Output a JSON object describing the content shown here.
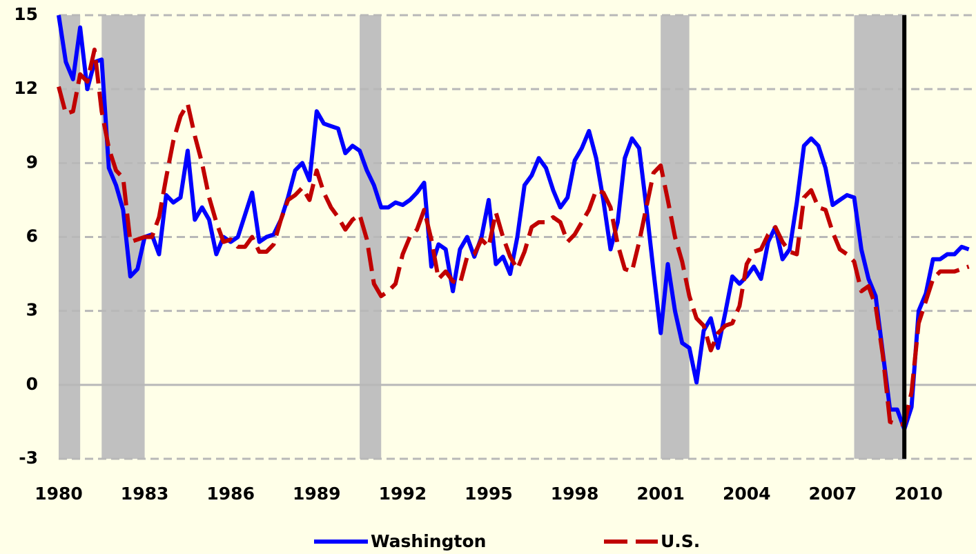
{
  "chart_data": {
    "type": "line",
    "x": [
      1980,
      1980.25,
      1980.5,
      1980.75,
      1981,
      1981.25,
      1981.5,
      1981.75,
      1982,
      1982.25,
      1982.5,
      1982.75,
      1983,
      1983.25,
      1983.5,
      1983.75,
      1984,
      1984.25,
      1984.5,
      1984.75,
      1985,
      1985.25,
      1985.5,
      1985.75,
      1986,
      1986.25,
      1986.5,
      1986.75,
      1987,
      1987.25,
      1987.5,
      1987.75,
      1988,
      1988.25,
      1988.5,
      1988.75,
      1989,
      1989.25,
      1989.5,
      1989.75,
      1990,
      1990.25,
      1990.5,
      1990.75,
      1991,
      1991.25,
      1991.5,
      1991.75,
      1992,
      1992.25,
      1992.5,
      1992.75,
      1993,
      1993.25,
      1993.5,
      1993.75,
      1994,
      1994.25,
      1994.5,
      1994.75,
      1995,
      1995.25,
      1995.5,
      1995.75,
      1996,
      1996.25,
      1996.5,
      1996.75,
      1997,
      1997.25,
      1997.5,
      1997.75,
      1998,
      1998.25,
      1998.5,
      1998.75,
      1999,
      1999.25,
      1999.5,
      1999.75,
      2000,
      2000.25,
      2000.5,
      2000.75,
      2001,
      2001.25,
      2001.5,
      2001.75,
      2002,
      2002.25,
      2002.5,
      2002.75,
      2003,
      2003.25,
      2003.5,
      2003.75,
      2004,
      2004.25,
      2004.5,
      2004.75,
      2005,
      2005.25,
      2005.5,
      2005.75,
      2006,
      2006.25,
      2006.5,
      2006.75,
      2007,
      2007.25,
      2007.5,
      2007.75,
      2008,
      2008.25,
      2008.5,
      2008.75,
      2009,
      2009.25,
      2009.5,
      2009.75,
      2010,
      2010.25,
      2010.5,
      2010.75,
      2011,
      2011.25,
      2011.5,
      2011.75
    ],
    "series": [
      {
        "name": "Washington",
        "color": "#0000ff",
        "dashed": false,
        "values": [
          15.0,
          13.1,
          12.4,
          14.5,
          12.0,
          13.1,
          13.2,
          8.8,
          8.1,
          7.1,
          4.4,
          4.7,
          6.0,
          6.1,
          5.3,
          7.7,
          7.4,
          7.6,
          9.5,
          6.7,
          7.2,
          6.7,
          5.3,
          6.0,
          5.8,
          6.0,
          6.9,
          7.8,
          5.8,
          6.0,
          6.1,
          6.7,
          7.6,
          8.7,
          9.0,
          8.3,
          11.1,
          10.6,
          10.5,
          10.4,
          9.4,
          9.7,
          9.5,
          8.7,
          8.1,
          7.2,
          7.2,
          7.4,
          7.3,
          7.5,
          7.8,
          8.2,
          4.8,
          5.7,
          5.5,
          3.8,
          5.5,
          6.0,
          5.2,
          6.0,
          7.5,
          4.9,
          5.2,
          4.5,
          6.0,
          8.1,
          8.5,
          9.2,
          8.8,
          7.9,
          7.2,
          7.6,
          9.1,
          9.6,
          10.3,
          9.2,
          7.5,
          5.5,
          6.6,
          9.2,
          10.0,
          9.6,
          7.2,
          4.6,
          2.1,
          4.9,
          3.0,
          1.7,
          1.5,
          0.1,
          2.2,
          2.7,
          1.5,
          2.9,
          4.4,
          4.1,
          4.4,
          4.8,
          4.3,
          5.8,
          6.4,
          5.1,
          5.5,
          7.4,
          9.7,
          10.0,
          9.7,
          8.8,
          7.3,
          7.5,
          7.7,
          7.6,
          5.5,
          4.3,
          3.6,
          1.3,
          -1.0,
          -1.0,
          -1.8,
          -0.9,
          3.0,
          3.7,
          5.1,
          5.1,
          5.3,
          5.3,
          5.6,
          5.5
        ]
      },
      {
        "name": "U.S.",
        "color": "#c00000",
        "dashed": true,
        "values": [
          12.1,
          11.0,
          11.1,
          12.6,
          12.3,
          13.6,
          11.1,
          9.6,
          8.7,
          8.4,
          5.8,
          5.9,
          6.0,
          6.0,
          6.8,
          8.4,
          9.9,
          10.9,
          11.4,
          10.1,
          9.0,
          7.6,
          6.6,
          5.8,
          5.9,
          5.6,
          5.6,
          6.0,
          5.4,
          5.4,
          5.7,
          6.7,
          7.5,
          7.7,
          8.0,
          7.5,
          8.7,
          7.8,
          7.2,
          6.8,
          6.3,
          6.7,
          6.9,
          5.9,
          4.1,
          3.6,
          3.8,
          4.1,
          5.3,
          6.0,
          6.3,
          7.1,
          5.9,
          4.3,
          4.6,
          4.2,
          4.1,
          5.2,
          5.3,
          5.9,
          5.6,
          7.0,
          6.0,
          5.2,
          4.7,
          5.4,
          6.4,
          6.6,
          6.6,
          6.8,
          6.6,
          5.8,
          6.1,
          6.6,
          7.1,
          7.9,
          7.8,
          7.2,
          5.7,
          4.7,
          4.6,
          5.8,
          7.2,
          8.6,
          8.9,
          7.5,
          6.0,
          5.0,
          3.6,
          2.7,
          2.4,
          1.4,
          2.1,
          2.4,
          2.5,
          3.2,
          4.9,
          5.4,
          5.5,
          6.1,
          6.4,
          5.8,
          5.4,
          5.3,
          7.6,
          7.9,
          7.2,
          7.1,
          6.2,
          5.5,
          5.3,
          5.0,
          3.8,
          4.0,
          3.2,
          1.2,
          -1.5,
          -1.6,
          -1.6,
          -0.3,
          2.5,
          3.4,
          4.3,
          4.6,
          4.6,
          4.6,
          4.7,
          4.8
        ]
      }
    ],
    "recessions": [
      [
        1980.0,
        1980.75
      ],
      [
        1981.5,
        1983.0
      ],
      [
        1990.5,
        1991.25
      ],
      [
        2001.0,
        2002.0
      ],
      [
        2007.75,
        2009.5
      ]
    ],
    "marker_x": 2009.5,
    "xlim": [
      1980,
      2012
    ],
    "xticks": [
      1980,
      1983,
      1986,
      1989,
      1992,
      1995,
      1998,
      2001,
      2004,
      2007,
      2010
    ],
    "ylim": [
      -3,
      15
    ],
    "yticks": [
      -3,
      0,
      3,
      6,
      9,
      12,
      15
    ],
    "grid": true,
    "legend": "bottom"
  }
}
